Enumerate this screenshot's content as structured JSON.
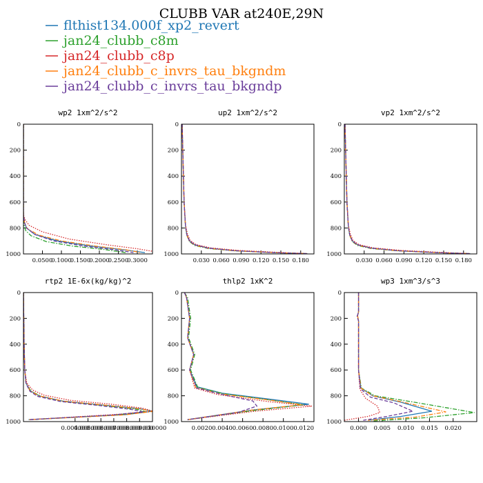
{
  "figure": {
    "title": "CLUBB VAR at240E,29N",
    "legend": [
      {
        "name": "flthist134.000f_xp2_revert",
        "color": "#1f77b4",
        "dash": "solid"
      },
      {
        "name": "jan24_clubb_c8m",
        "color": "#2ca02c",
        "dash": "dashdot"
      },
      {
        "name": "jan24_clubb_c8p",
        "color": "#d62728",
        "dash": "dotted"
      },
      {
        "name": "jan24_clubb_c_invrs_tau_bkgndm",
        "color": "#ff7f0e",
        "dash": "dashdot"
      },
      {
        "name": "jan24_clubb_c_invrs_tau_bkgndp",
        "color": "#6a3d9a",
        "dash": "dashed"
      }
    ]
  },
  "chart_data": [
    {
      "type": "line",
      "title": "wp2  1xm^2/s^2",
      "xlim": [
        0,
        0.34
      ],
      "ylim": [
        1000,
        0
      ],
      "y_reversed": true,
      "xticks": [
        0.05,
        0.1,
        0.15,
        0.2,
        0.25,
        0.3
      ],
      "xtick_labels": [
        "0.0500",
        "0.1000",
        "0.1500",
        "0.2000",
        "0.2500",
        "0.3000"
      ],
      "yticks": [
        0,
        200,
        400,
        600,
        800,
        1000
      ],
      "ytick_labels": [
        "0",
        "200",
        "400",
        "600",
        "800",
        "1000"
      ],
      "series": [
        {
          "x": [
            0,
            0,
            0.003,
            0.008,
            0.03,
            0.09,
            0.18,
            0.27,
            0.32
          ],
          "y": [
            0,
            700,
            760,
            800,
            850,
            900,
            940,
            970,
            990
          ]
        },
        {
          "x": [
            0,
            0,
            0.002,
            0.006,
            0.02,
            0.06,
            0.13,
            0.21,
            0.27
          ],
          "y": [
            0,
            720,
            780,
            820,
            860,
            905,
            940,
            965,
            990
          ]
        },
        {
          "x": [
            0,
            0,
            0.005,
            0.015,
            0.05,
            0.12,
            0.22,
            0.3,
            0.34
          ],
          "y": [
            0,
            700,
            740,
            780,
            830,
            885,
            930,
            960,
            980
          ]
        },
        {
          "x": [
            0,
            0,
            0.003,
            0.01,
            0.04,
            0.1,
            0.19,
            0.27,
            0.31
          ],
          "y": [
            0,
            700,
            760,
            805,
            855,
            900,
            940,
            968,
            990
          ]
        },
        {
          "x": [
            0,
            0,
            0.003,
            0.008,
            0.03,
            0.08,
            0.16,
            0.24,
            0.29
          ],
          "y": [
            0,
            700,
            760,
            800,
            850,
            900,
            940,
            968,
            990
          ]
        }
      ]
    },
    {
      "type": "line",
      "title": "up2  1xm^2/s^2",
      "xlim": [
        0,
        0.2
      ],
      "ylim": [
        1000,
        0
      ],
      "y_reversed": true,
      "xticks": [
        0.03,
        0.06,
        0.09,
        0.12,
        0.15,
        0.18
      ],
      "xtick_labels": [
        "0.030",
        "0.060",
        "0.090",
        "0.120",
        "0.150",
        "0.180"
      ],
      "yticks": [
        0,
        200,
        400,
        600,
        800,
        1000
      ],
      "ytick_labels": [
        "0",
        "200",
        "400",
        "600",
        "800",
        "1000"
      ],
      "series": [
        {
          "x": [
            0.001,
            0.002,
            0.004,
            0.006,
            0.008,
            0.012,
            0.02,
            0.04,
            0.08,
            0.14,
            0.19
          ],
          "y": [
            0,
            200,
            600,
            780,
            850,
            900,
            930,
            955,
            975,
            990,
            998
          ]
        },
        {
          "x": [
            0.001,
            0.002,
            0.004,
            0.006,
            0.008,
            0.012,
            0.02,
            0.04,
            0.08,
            0.14,
            0.19
          ],
          "y": [
            0,
            200,
            600,
            790,
            855,
            905,
            935,
            958,
            976,
            990,
            998
          ]
        },
        {
          "x": [
            0.001,
            0.002,
            0.004,
            0.006,
            0.009,
            0.013,
            0.022,
            0.044,
            0.085,
            0.145,
            0.19
          ],
          "y": [
            0,
            200,
            600,
            775,
            845,
            895,
            928,
            953,
            973,
            988,
            998
          ]
        },
        {
          "x": [
            0.001,
            0.002,
            0.004,
            0.006,
            0.008,
            0.012,
            0.02,
            0.04,
            0.08,
            0.14,
            0.19
          ],
          "y": [
            0,
            200,
            600,
            780,
            852,
            902,
            932,
            956,
            975,
            990,
            998
          ]
        },
        {
          "x": [
            0.001,
            0.002,
            0.004,
            0.006,
            0.008,
            0.012,
            0.02,
            0.04,
            0.08,
            0.14,
            0.19
          ],
          "y": [
            0,
            200,
            600,
            785,
            850,
            900,
            930,
            955,
            975,
            990,
            998
          ]
        }
      ]
    },
    {
      "type": "line",
      "title": "vp2  1xm^2/s^2",
      "xlim": [
        0,
        0.2
      ],
      "ylim": [
        1000,
        0
      ],
      "y_reversed": true,
      "xticks": [
        0.03,
        0.06,
        0.09,
        0.12,
        0.15,
        0.18
      ],
      "xtick_labels": [
        "0.030",
        "0.060",
        "0.090",
        "0.120",
        "0.150",
        "0.180"
      ],
      "yticks": [
        0,
        200,
        400,
        600,
        800,
        1000
      ],
      "ytick_labels": [
        "0",
        "200",
        "400",
        "600",
        "800",
        "1000"
      ],
      "series": [
        {
          "x": [
            0.001,
            0.002,
            0.004,
            0.006,
            0.008,
            0.012,
            0.02,
            0.04,
            0.08,
            0.14,
            0.19
          ],
          "y": [
            0,
            200,
            600,
            780,
            850,
            900,
            930,
            955,
            975,
            990,
            998
          ]
        },
        {
          "x": [
            0.001,
            0.002,
            0.004,
            0.006,
            0.008,
            0.012,
            0.02,
            0.04,
            0.08,
            0.14,
            0.19
          ],
          "y": [
            0,
            200,
            600,
            790,
            855,
            905,
            935,
            958,
            976,
            990,
            998
          ]
        },
        {
          "x": [
            0.001,
            0.002,
            0.004,
            0.006,
            0.009,
            0.013,
            0.022,
            0.044,
            0.085,
            0.145,
            0.19
          ],
          "y": [
            0,
            200,
            600,
            775,
            845,
            895,
            928,
            953,
            973,
            988,
            998
          ]
        },
        {
          "x": [
            0.001,
            0.002,
            0.004,
            0.006,
            0.008,
            0.012,
            0.02,
            0.04,
            0.08,
            0.14,
            0.19
          ],
          "y": [
            0,
            200,
            600,
            780,
            852,
            902,
            932,
            956,
            975,
            990,
            998
          ]
        },
        {
          "x": [
            0.001,
            0.002,
            0.004,
            0.006,
            0.008,
            0.012,
            0.02,
            0.04,
            0.08,
            0.14,
            0.19
          ],
          "y": [
            0,
            200,
            600,
            785,
            850,
            900,
            930,
            955,
            975,
            990,
            998
          ]
        }
      ]
    },
    {
      "type": "line",
      "title": "rtp2  1E-6x(kg/kg)^2",
      "xlim": [
        0,
        0.01
      ],
      "ylim": [
        1000,
        0
      ],
      "y_reversed": true,
      "xticks": [
        0.004,
        0.005,
        0.006,
        0.007,
        0.008,
        0.009,
        0.01
      ],
      "xtick_labels": [
        "0.004000",
        "0.005000",
        "0.006000",
        "0.007000",
        "0.008000",
        "0.009000",
        "0.010000"
      ],
      "yticks": [
        0,
        200,
        400,
        600,
        800,
        1000
      ],
      "ytick_labels": [
        "0",
        "200",
        "400",
        "600",
        "800",
        "1000"
      ],
      "series": [
        {
          "x": [
            0,
            5e-05,
            0.0001,
            0.0002,
            0.0005,
            0.0012,
            0.003,
            0.006,
            0.009,
            0.01,
            0.008,
            0.0004
          ],
          "y": [
            0,
            400,
            600,
            700,
            760,
            800,
            840,
            870,
            900,
            920,
            945,
            985
          ]
        },
        {
          "x": [
            0,
            5e-05,
            0.0001,
            0.0002,
            0.0006,
            0.0014,
            0.0032,
            0.0062,
            0.0088,
            0.0095,
            0.007,
            0.0005
          ],
          "y": [
            0,
            400,
            600,
            705,
            765,
            805,
            845,
            875,
            905,
            925,
            950,
            985
          ]
        },
        {
          "x": [
            0,
            5e-05,
            0.0001,
            0.00025,
            0.0007,
            0.0016,
            0.0036,
            0.0068,
            0.0092,
            0.01,
            0.0075,
            0.0005
          ],
          "y": [
            0,
            400,
            600,
            700,
            755,
            795,
            835,
            865,
            895,
            918,
            942,
            985
          ]
        },
        {
          "x": [
            0,
            5e-05,
            0.0001,
            0.0002,
            0.0005,
            0.0012,
            0.0031,
            0.0063,
            0.0091,
            0.01,
            0.0078,
            0.0004
          ],
          "y": [
            0,
            400,
            600,
            700,
            760,
            800,
            842,
            872,
            902,
            922,
            948,
            985
          ]
        },
        {
          "x": [
            0,
            5e-05,
            0.0001,
            0.0002,
            0.0005,
            0.0011,
            0.0029,
            0.0058,
            0.0083,
            0.0093,
            0.0068,
            0.0004
          ],
          "y": [
            0,
            400,
            600,
            705,
            765,
            805,
            845,
            875,
            905,
            925,
            950,
            985
          ]
        }
      ]
    },
    {
      "type": "line",
      "title": "thlp2  1xK^2",
      "xlim": [
        0,
        0.013
      ],
      "ylim": [
        1000,
        0
      ],
      "y_reversed": true,
      "xticks": [
        0.002,
        0.004,
        0.006,
        0.008,
        0.01,
        0.012
      ],
      "xtick_labels": [
        "0.0020",
        "0.0040",
        "0.0060",
        "0.0080",
        "0.0100",
        "0.0120"
      ],
      "yticks": [
        0,
        200,
        400,
        600,
        800,
        1000
      ],
      "ytick_labels": [
        "0",
        "200",
        "400",
        "600",
        "800",
        "1000"
      ],
      "series": [
        {
          "x": [
            0.0003,
            0.0005,
            0.0008,
            0.0006,
            0.0012,
            0.0008,
            0.0015,
            0.004,
            0.009,
            0.0125,
            0.007,
            0.0006
          ],
          "y": [
            0,
            40,
            200,
            350,
            480,
            600,
            730,
            780,
            830,
            865,
            910,
            985
          ]
        },
        {
          "x": [
            0.0003,
            0.0006,
            0.0009,
            0.0007,
            0.0013,
            0.0009,
            0.0016,
            0.0042,
            0.0088,
            0.012,
            0.007,
            0.0006
          ],
          "y": [
            0,
            40,
            200,
            350,
            480,
            600,
            735,
            785,
            835,
            870,
            915,
            985
          ]
        },
        {
          "x": [
            0.0003,
            0.0005,
            0.0008,
            0.0006,
            0.0012,
            0.0008,
            0.0013,
            0.0035,
            0.0085,
            0.0128,
            0.0072,
            0.0006
          ],
          "y": [
            0,
            40,
            200,
            350,
            480,
            600,
            740,
            790,
            845,
            880,
            920,
            985
          ]
        },
        {
          "x": [
            0.0003,
            0.0005,
            0.0008,
            0.0006,
            0.0012,
            0.0008,
            0.0014,
            0.0038,
            0.0088,
            0.0118,
            0.0068,
            0.0006
          ],
          "y": [
            0,
            40,
            200,
            350,
            480,
            600,
            735,
            785,
            835,
            870,
            912,
            985
          ]
        },
        {
          "x": [
            0.0003,
            0.0005,
            0.0008,
            0.0006,
            0.0012,
            0.0008,
            0.0015,
            0.004,
            0.007,
            0.0074,
            0.0055,
            0.0006
          ],
          "y": [
            0,
            40,
            200,
            350,
            480,
            600,
            740,
            790,
            840,
            880,
            930,
            985
          ]
        }
      ]
    },
    {
      "type": "line",
      "title": "wp3  1xm^3/s^3",
      "xlim": [
        -0.003,
        0.025
      ],
      "ylim": [
        1000,
        0
      ],
      "y_reversed": true,
      "xticks": [
        0,
        0.005,
        0.01,
        0.015,
        0.02
      ],
      "xtick_labels": [
        "0.000",
        "0.005",
        "0.010",
        "0.015",
        "0.020"
      ],
      "yticks": [
        0,
        200,
        400,
        600,
        800,
        1000
      ],
      "ytick_labels": [
        "0",
        "200",
        "400",
        "600",
        "800",
        "1000"
      ],
      "series": [
        {
          "x": [
            0,
            0,
            -0.0002,
            0,
            0,
            0.0005,
            0.003,
            0.009,
            0.0155,
            0.009,
            0.002
          ],
          "y": [
            0,
            150,
            180,
            220,
            600,
            740,
            800,
            850,
            920,
            960,
            990
          ]
        },
        {
          "x": [
            0,
            0,
            -0.0002,
            0,
            0,
            0.0006,
            0.0035,
            0.011,
            0.0245,
            0.014,
            0.003
          ],
          "y": [
            0,
            150,
            180,
            220,
            600,
            740,
            800,
            845,
            930,
            970,
            995
          ]
        },
        {
          "x": [
            0,
            0,
            -0.0002,
            0,
            0,
            0.0003,
            0.0015,
            0.004,
            0.0045,
            0.002,
            -0.003
          ],
          "y": [
            0,
            150,
            180,
            220,
            600,
            750,
            820,
            880,
            930,
            960,
            990
          ]
        },
        {
          "x": [
            0,
            0,
            -0.0002,
            0,
            0,
            0.0005,
            0.003,
            0.0095,
            0.0185,
            0.012,
            0.002
          ],
          "y": [
            0,
            150,
            180,
            220,
            600,
            740,
            800,
            850,
            925,
            965,
            990
          ]
        },
        {
          "x": [
            0,
            0,
            -0.0003,
            0,
            0,
            0.0004,
            0.0025,
            0.0075,
            0.0115,
            0.006,
            0.001
          ],
          "y": [
            0,
            150,
            185,
            220,
            600,
            745,
            810,
            855,
            920,
            960,
            990
          ]
        }
      ]
    }
  ]
}
